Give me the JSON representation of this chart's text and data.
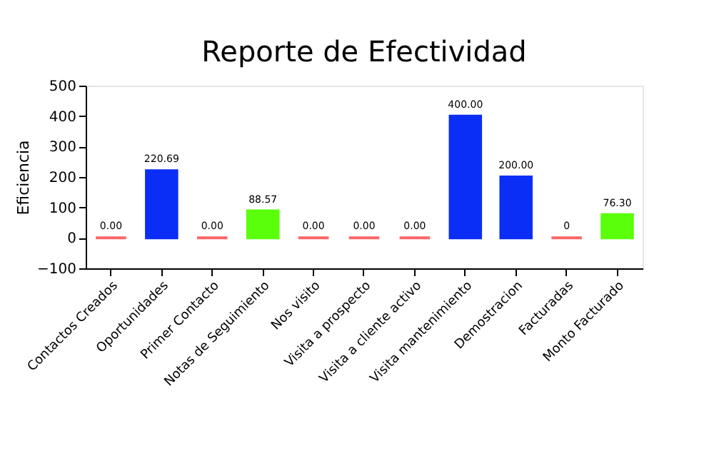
{
  "chart_data": {
    "type": "bar",
    "title": "Reporte de Efectividad",
    "ylabel": "Eficiencia",
    "categories": [
      "Contactos Creados",
      "Oportunidades",
      "Primer Contacto",
      "Notas de Seguimiento",
      "Nos visito",
      "Visita a prospecto",
      "Visita a cliente activo",
      "Visita mantenimiento",
      "Demostracion",
      "Facturadas",
      "Monto Facturado"
    ],
    "values": [
      0,
      220.69,
      0,
      88.57,
      0,
      0,
      0,
      400,
      200,
      0,
      76.3
    ],
    "value_labels": [
      "0.00",
      "220.69",
      "0.00",
      "88.57",
      "0.00",
      "0.00",
      "0.00",
      "400.00",
      "200.00",
      "0",
      "76.30"
    ],
    "colors": [
      "#ff6666",
      "#0a2ef5",
      "#ff6666",
      "#5aff0a",
      "#ff6666",
      "#ff6666",
      "#ff6666",
      "#0a2ef5",
      "#0a2ef5",
      "#ff6666",
      "#5aff0a"
    ],
    "ylim": [
      -100,
      500
    ],
    "yticks": [
      -100,
      0,
      100,
      200,
      300,
      400,
      500
    ],
    "grid": false
  }
}
